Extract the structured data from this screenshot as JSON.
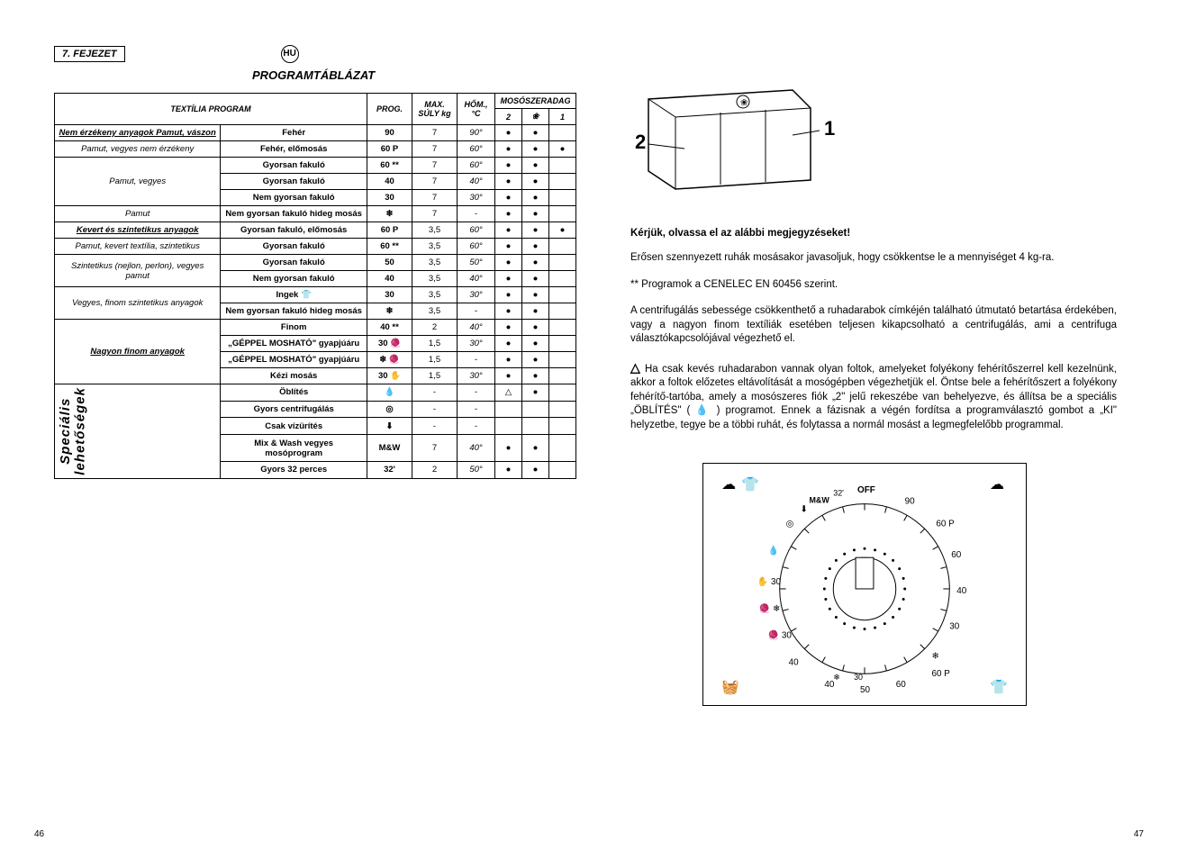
{
  "chapter": "7. FEJEZET",
  "locale_badge": "HU",
  "title": "PROGRAMTÁBLÁZAT",
  "headers": {
    "textile": "TEXTÍLIA PROGRAM",
    "prog": "PROG.",
    "max_weight": "MAX. SÚLY kg",
    "temp": "HŐM., °C",
    "detergent": "MOSÓSZERADAG",
    "col2": "2",
    "col_flower": "❀",
    "col1": "1"
  },
  "rows": [
    {
      "group": "Nem érzékeny anyagok Pamut, vászon",
      "group_class": "bold-under",
      "desc": "Fehér",
      "prog": "90",
      "weight": "7",
      "temp": "90°",
      "d": [
        "●",
        "●",
        ""
      ]
    },
    {
      "group": "Pamut, vegyes nem érzékeny",
      "group_class": "row-label",
      "desc": "Fehér, előmosás",
      "prog": "60 P",
      "weight": "7",
      "temp": "60°",
      "d": [
        "●",
        "●",
        "●"
      ]
    },
    {
      "group": "Pamut, vegyes",
      "group_class": "row-label",
      "rowspan": 3,
      "desc": "Gyorsan fakuló",
      "prog": "60 **",
      "weight": "7",
      "temp": "60°",
      "d": [
        "●",
        "●",
        ""
      ]
    },
    {
      "desc": "Gyorsan fakuló",
      "prog": "40",
      "weight": "7",
      "temp": "40°",
      "d": [
        "●",
        "●",
        ""
      ]
    },
    {
      "desc": "Nem gyorsan fakuló",
      "prog": "30",
      "weight": "7",
      "temp": "30°",
      "d": [
        "●",
        "●",
        ""
      ]
    },
    {
      "group": "Pamut",
      "group_class": "row-label",
      "desc": "Nem gyorsan fakuló hideg mosás",
      "prog": "❄",
      "weight": "7",
      "temp": "-",
      "d": [
        "●",
        "●",
        ""
      ]
    },
    {
      "group": "Kevert és szintetikus anyagok",
      "group_class": "bold-under",
      "desc": "Gyorsan fakuló, előmosás",
      "prog": "60 P",
      "weight": "3,5",
      "temp": "60°",
      "d": [
        "●",
        "●",
        "●"
      ]
    },
    {
      "group": "Pamut, kevert textília, szintetikus",
      "group_class": "row-label",
      "desc": "Gyorsan fakuló",
      "prog": "60 **",
      "weight": "3,5",
      "temp": "60°",
      "d": [
        "●",
        "●",
        ""
      ]
    },
    {
      "group": "Szintetikus (nejlon, perlon), vegyes pamut",
      "group_class": "row-label",
      "rowspan": 2,
      "desc": "Gyorsan fakuló",
      "prog": "50",
      "weight": "3,5",
      "temp": "50°",
      "d": [
        "●",
        "●",
        ""
      ]
    },
    {
      "desc": "Nem gyorsan fakuló",
      "prog": "40",
      "weight": "3,5",
      "temp": "40°",
      "d": [
        "●",
        "●",
        ""
      ]
    },
    {
      "group": "Vegyes, finom szintetikus anyagok",
      "group_class": "row-label",
      "rowspan": 2,
      "desc": "Ingek 👕",
      "prog": "30",
      "weight": "3,5",
      "temp": "30°",
      "d": [
        "●",
        "●",
        ""
      ]
    },
    {
      "desc": "Nem gyorsan fakuló hideg mosás",
      "prog": "❄",
      "weight": "3,5",
      "temp": "-",
      "d": [
        "●",
        "●",
        ""
      ]
    },
    {
      "group": "Nagyon finom anyagok",
      "group_class": "bold-under",
      "rowspan": 4,
      "desc": "Finom",
      "prog": "40 **",
      "weight": "2",
      "temp": "40°",
      "d": [
        "●",
        "●",
        ""
      ]
    },
    {
      "desc": "„GÉPPEL MOSHATÓ\" gyapjúáru",
      "prog": "30 🧶",
      "weight": "1,5",
      "temp": "30°",
      "d": [
        "●",
        "●",
        ""
      ]
    },
    {
      "desc": "„GÉPPEL MOSHATÓ\" gyapjúáru",
      "prog": "❄ 🧶",
      "weight": "1,5",
      "temp": "-",
      "d": [
        "●",
        "●",
        ""
      ]
    },
    {
      "desc": "Kézi mosás",
      "prog": "30 ✋",
      "weight": "1,5",
      "temp": "30°",
      "d": [
        "●",
        "●",
        ""
      ]
    },
    {
      "group": "Speciális lehetőségek",
      "group_class": "vertical",
      "rowspan": 5,
      "desc": "Öblítés",
      "prog": "💧",
      "weight": "-",
      "temp": "-",
      "d": [
        "△",
        "●",
        ""
      ]
    },
    {
      "desc": "Gyors centrifugálás",
      "prog": "◎",
      "weight": "-",
      "temp": "-",
      "d": [
        "",
        "",
        ""
      ]
    },
    {
      "desc": "Csak vízürítés",
      "prog": "⬇",
      "weight": "-",
      "temp": "-",
      "d": [
        "",
        "",
        ""
      ]
    },
    {
      "desc": "Mix & Wash vegyes mosóprogram",
      "prog": "M&W",
      "weight": "7",
      "temp": "40°",
      "d": [
        "●",
        "●",
        ""
      ]
    },
    {
      "desc": "Gyors 32 perces",
      "prog": "32'",
      "weight": "2",
      "temp": "50°",
      "d": [
        "●",
        "●",
        ""
      ]
    }
  ],
  "right": {
    "drawer_labels": {
      "one": "1",
      "two": "2"
    },
    "note_heading": "Kérjük, olvassa el az alábbi megjegyzéseket!",
    "para1": "Erősen szennyezett ruhák mosásakor javasoljuk, hogy csökkentse le a mennyiséget 4 kg-ra.",
    "para2": "** Programok a CENELEC EN 60456 szerint.",
    "para3": "A centrifugálás sebessége csökkenthető a ruhadarabok címkéjén található útmutató betartása érdekében, vagy a nagyon finom textíliák esetében teljesen kikapcsolható a centrifugálás, ami a centrifuga választókapcsolójával végezhető el.",
    "para4": "Ha csak kevés ruhadarabon vannak olyan foltok, amelyeket folyékony fehérítőszerrel kell kezelnünk, akkor a foltok előzetes eltávolítását a mosógépben végezhetjük el. Öntse bele a fehérítőszert a folyékony fehérítő-tartóba, amely a mosószeres fiók „2\" jelű rekeszébe van behelyezve, és állítsa be a speciális „ÖBLÍTÉS\" ( 💧 ) programot. Ennek a fázisnak a végén fordítsa a programválasztó gombot a „KI\" helyzetbe, tegye be a többi ruhát, és folytassa a normál mosást a legmegfelelőbb programmal.",
    "dial_labels": [
      "OFF",
      "90",
      "60 P",
      "60",
      "40",
      "30",
      "❄",
      "60 P",
      "60",
      "50",
      "40",
      "30",
      "❄",
      "40",
      "30",
      "M&W",
      "32'"
    ]
  },
  "page_left": "46",
  "page_right": "47"
}
